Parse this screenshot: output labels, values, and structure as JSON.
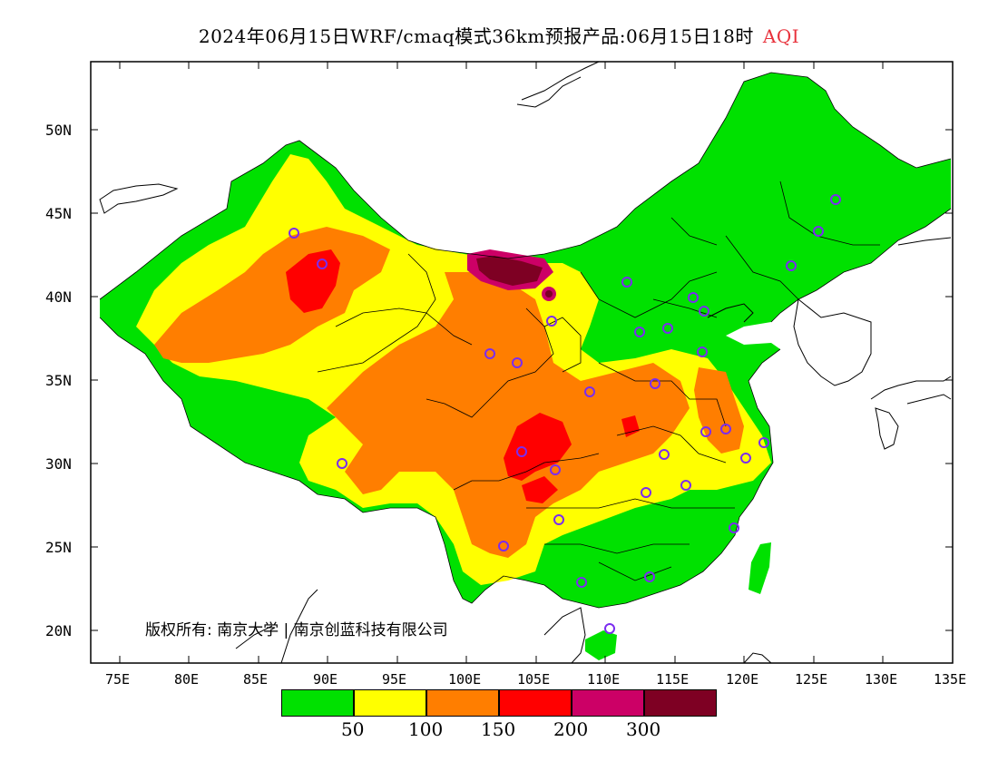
{
  "title": {
    "main": "2024年06月15日WRF/cmaq模式36km预报产品:06月15日18时",
    "variable": "AQI",
    "variable_color": "#e8323c"
  },
  "axes": {
    "lat_labels": [
      "50N",
      "45N",
      "40N",
      "35N",
      "30N",
      "25N",
      "20N"
    ],
    "lon_labels": [
      "75E",
      "80E",
      "85E",
      "90E",
      "95E",
      "100E",
      "105E",
      "110E",
      "115E",
      "120E",
      "125E",
      "130E",
      "135E"
    ]
  },
  "legend": {
    "colors": [
      "#00e100",
      "#ffff00",
      "#ff7e00",
      "#ff0000",
      "#cc0066",
      "#7e0023"
    ],
    "thresholds": [
      "50",
      "100",
      "150",
      "200",
      "300"
    ]
  },
  "copyright": "版权所有: 南京大学 | 南京创蓝科技有限公司",
  "colors": {
    "good": "#00e100",
    "moderate": "#ffff00",
    "sensitive": "#ff7e00",
    "unhealthy": "#ff0000",
    "very_unhealthy": "#cc0066",
    "hazardous": "#7e0023",
    "station_marker": "#7b2cf0"
  }
}
